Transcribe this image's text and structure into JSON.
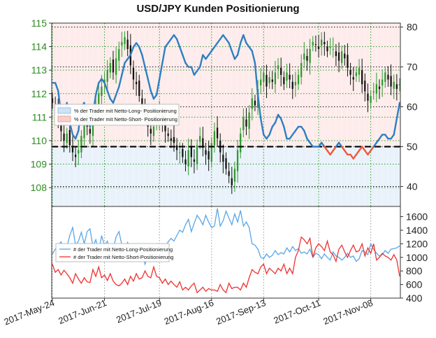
{
  "title": "USD/JPY Kunden Positionierung",
  "colors": {
    "long": "#2f7fc1",
    "short": "#f05a3a",
    "longLight": "#5aa6e6",
    "shortLight": "#f03030",
    "candleUp": "#2e9a2e",
    "candleDown": "#111111",
    "priceAxis": "#2e8b22"
  },
  "chart_data": [
    {
      "type": "line",
      "title": "USD/JPY Kunden Positionierung",
      "price_axis": {
        "ticks": [
          108,
          109,
          110,
          111,
          112,
          113,
          114,
          115
        ],
        "range": [
          107.2,
          115
        ]
      },
      "pct_axis": {
        "ticks": [
          40,
          50,
          60,
          70,
          80
        ],
        "range": [
          35,
          81
        ]
      },
      "reference_line": 50,
      "x_ticks": [
        "2017-May-24",
        "2017-Jun-21",
        "2017-Jul-19",
        "2017-Aug-16",
        "2017-Sep-13",
        "2017-Oct-11",
        "2017-Nov-08"
      ],
      "legend": [
        "% der Trader mit Netto-Long- Positionierung",
        "% der Trader mit Netto-Short- Positionierung"
      ],
      "series": [
        {
          "name": "% der Trader mit Netto-Long- Positionierung",
          "values": [
            66,
            66,
            64,
            58,
            57,
            61,
            56,
            53,
            52,
            54,
            60,
            61,
            57,
            55,
            58,
            63,
            66,
            67,
            66,
            64,
            62,
            61,
            63,
            65,
            68,
            71,
            72,
            73,
            75,
            76,
            75,
            73,
            70,
            67,
            64,
            62,
            63,
            67,
            71,
            75,
            76,
            77,
            78,
            77,
            75,
            73,
            71,
            70,
            70,
            68,
            69,
            70,
            73,
            72,
            73,
            74,
            75,
            76,
            77,
            78,
            77,
            76,
            74,
            72,
            73,
            76,
            78,
            76,
            75,
            74,
            71,
            63,
            57,
            53,
            52,
            53,
            55,
            56,
            58,
            57,
            55,
            52,
            52,
            53,
            54,
            55,
            55,
            54,
            52,
            51,
            50,
            50,
            50,
            51,
            50,
            49,
            48,
            49,
            50,
            51,
            50,
            49,
            48,
            48,
            47,
            48,
            49,
            50,
            49,
            48,
            49,
            50,
            51,
            52,
            53,
            53,
            52,
            52,
            53,
            57,
            61
          ]
        },
        {
          "name": "% der Trader mit Netto-Short- Positionierung",
          "values": [
            34,
            34,
            36,
            42,
            43,
            39,
            44,
            47,
            48,
            46,
            40,
            39,
            43,
            45,
            42,
            37,
            34,
            33,
            34,
            36,
            38,
            39,
            37,
            35,
            32,
            29,
            28,
            27,
            25,
            24,
            25,
            27,
            30,
            33,
            36,
            38,
            37,
            33,
            29,
            25,
            24,
            23,
            22,
            23,
            25,
            27,
            29,
            30,
            30,
            32,
            31,
            30,
            27,
            28,
            27,
            26,
            25,
            24,
            23,
            22,
            23,
            24,
            26,
            28,
            27,
            24,
            22,
            24,
            25,
            26,
            29,
            37,
            43,
            47,
            48,
            47,
            45,
            44,
            42,
            43,
            45,
            48,
            48,
            47,
            46,
            45,
            45,
            46,
            48,
            49,
            50,
            50,
            50,
            49,
            50,
            51,
            52,
            51,
            50,
            49,
            50,
            51,
            52,
            52,
            53,
            52,
            51,
            50,
            51,
            52,
            51,
            50,
            49,
            48,
            47,
            47,
            48,
            48,
            47,
            43,
            39
          ]
        }
      ],
      "price_close": [
        111.6,
        111.4,
        110.9,
        110.4,
        110.0,
        110.3,
        109.8,
        109.5,
        109.3,
        109.6,
        110.2,
        110.9,
        110.6,
        110.3,
        110.8,
        111.5,
        112.0,
        112.3,
        112.6,
        113.0,
        113.3,
        112.9,
        113.5,
        113.9,
        114.2,
        114.4,
        113.9,
        113.2,
        112.6,
        112.4,
        111.9,
        111.4,
        111.1,
        110.6,
        110.3,
        110.6,
        110.9,
        111.2,
        110.8,
        110.4,
        110.2,
        110.0,
        109.9,
        109.6,
        109.5,
        109.3,
        109.0,
        109.6,
        109.3,
        109.1,
        109.8,
        110.2,
        109.7,
        109.4,
        109.2,
        109.9,
        110.4,
        110.1,
        109.5,
        109.1,
        108.8,
        108.5,
        108.1,
        108.8,
        109.6,
        110.3,
        111.0,
        110.6,
        111.2,
        111.8,
        111.5,
        112.2,
        112.6,
        112.9,
        112.3,
        112.7,
        112.5,
        112.9,
        113.2,
        112.8,
        112.4,
        112.9,
        112.6,
        112.2,
        112.5,
        112.8,
        113.3,
        113.7,
        113.4,
        113.9,
        114.2,
        114.1,
        113.9,
        114.3,
        114.1,
        113.8,
        114.0,
        113.9,
        113.6,
        113.4,
        113.8,
        113.5,
        113.1,
        112.8,
        112.6,
        112.9,
        113.1,
        112.4,
        112.1,
        111.7,
        111.9,
        112.1,
        112.4,
        112.2,
        112.6,
        112.9,
        112.6,
        112.3,
        112.5,
        112.2,
        112.4
      ]
    },
    {
      "type": "line",
      "y_ticks": [
        400,
        600,
        800,
        1000,
        1200,
        1400,
        1600
      ],
      "y_range": [
        400,
        1750
      ],
      "legend": [
        "# der Trader mit Netto-Long-Positionierung",
        "# der Trader mit Netto-Short-Positionierung"
      ],
      "series": [
        {
          "name": "# der Trader mit Netto-Long-Positionierung",
          "values": [
            1050,
            1120,
            1180,
            1230,
            1100,
            1150,
            1320,
            1440,
            1180,
            1240,
            1370,
            1200,
            1380,
            1420,
            1160,
            1260,
            1080,
            1320,
            1180,
            1240,
            1080,
            1120,
            1300,
            1380,
            1180,
            1150,
            1220,
            1060,
            1120,
            980,
            1050,
            1080,
            900,
            1020,
            1080,
            950,
            1060,
            1100,
            1200,
            1160,
            1230,
            1280,
            1240,
            1320,
            1400,
            1370,
            1480,
            1560,
            1380,
            1500,
            1620,
            1560,
            1480,
            1620,
            1520,
            1440,
            1460,
            1720,
            1460,
            1540,
            1680,
            1580,
            1480,
            1640,
            1520,
            1690,
            1460,
            1520,
            1440,
            1200,
            1180,
            1120,
            1000,
            980,
            1050,
            1000,
            1030,
            1100,
            1040,
            1070,
            1050,
            1140,
            1080,
            1160,
            1100,
            1130,
            1060,
            1080,
            1050,
            1120,
            1000,
            1060,
            1040,
            980,
            1050,
            1000,
            960,
            1080,
            1020,
            1000,
            960,
            1000,
            1060,
            1000,
            1020,
            940,
            980,
            1100,
            1080,
            1040,
            1200,
            1120,
            1060,
            1020,
            1040,
            1100,
            1060,
            1120,
            1130,
            1140,
            1170
          ]
        },
        {
          "name": "# der Trader mit Netto-Short-Positionierung",
          "values": [
            900,
            780,
            820,
            740,
            810,
            760,
            700,
            620,
            760,
            680,
            620,
            700,
            640,
            630,
            820,
            720,
            860,
            700,
            740,
            660,
            760,
            650,
            600,
            580,
            620,
            680,
            600,
            720,
            650,
            760,
            680,
            700,
            800,
            720,
            700,
            860,
            720,
            700,
            620,
            680,
            600,
            650,
            600,
            560,
            640,
            520,
            560,
            520,
            580,
            620,
            480,
            520,
            560,
            500,
            540,
            520,
            520,
            500,
            600,
            520,
            480,
            620,
            540,
            560,
            560,
            520,
            620,
            560,
            700,
            820,
            780,
            760,
            860,
            900,
            760,
            840,
            800,
            760,
            840,
            800,
            900,
            760,
            840,
            760,
            1000,
            1100,
            1300,
            1260,
            1200,
            1280,
            1000,
            1140,
            1200,
            1160,
            1100,
            1240,
            1080,
            1040,
            940,
            1120,
            1180,
            1080,
            1000,
            1100,
            1180,
            1080,
            1100,
            1200,
            1020,
            1140,
            1060,
            1200,
            960,
            1000,
            1060,
            1020,
            1000,
            960,
            1040,
            960,
            720
          ]
        }
      ]
    }
  ]
}
